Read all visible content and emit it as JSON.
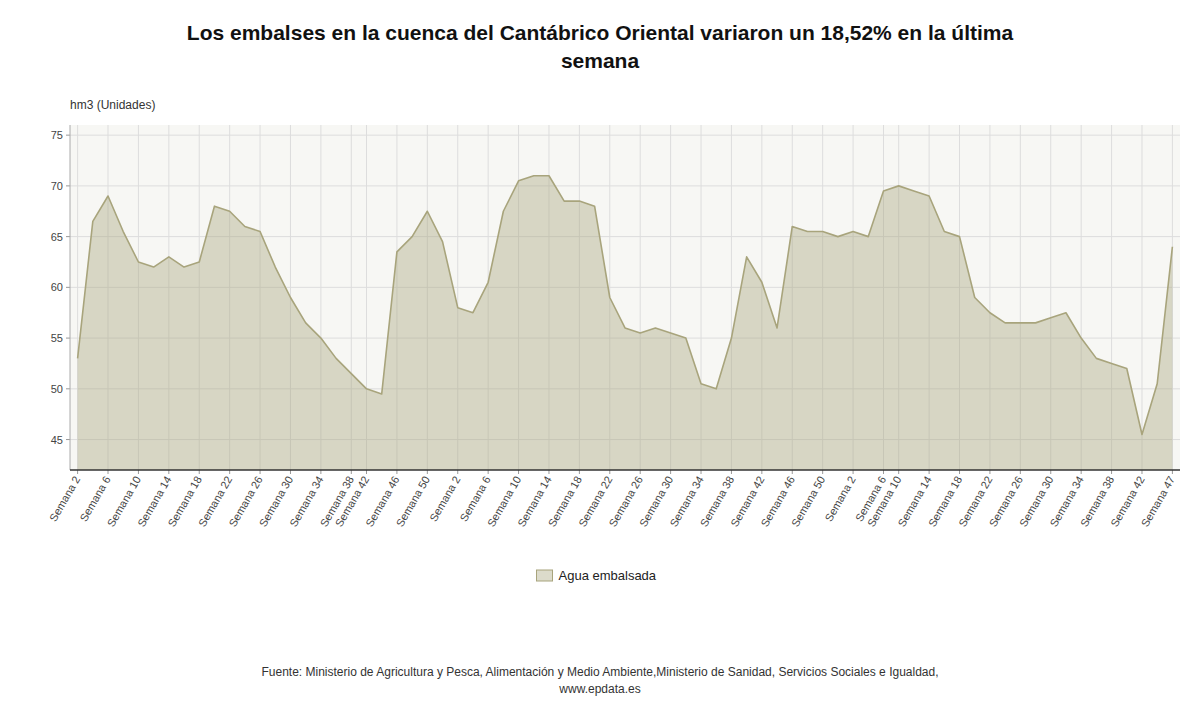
{
  "chart_data": {
    "type": "area",
    "title": "Los embalses en la cuenca del Cantábrico Oriental variaron un 18,52% en la última\nsemana",
    "y_label": "hm3 (Unidades)",
    "source": "Fuente: Ministerio de Agricultura y Pesca, Alimentación y Medio Ambiente,Ministerio de Sanidad, Servicios Sociales e Igualdad,\nwww.epdata.es",
    "categories": [
      "Semana 2",
      null,
      "Semana 6",
      null,
      "Semana 10",
      null,
      "Semana 14",
      null,
      "Semana 18",
      null,
      "Semana 22",
      null,
      "Semana 26",
      null,
      "Semana 30",
      null,
      "Semana 34",
      null,
      "Semana 38",
      "Semana 42",
      null,
      "Semana 46",
      null,
      "Semana 50",
      null,
      "Semana 2",
      null,
      "Semana 6",
      null,
      "Semana 10",
      null,
      "Semana 14",
      null,
      "Semana 18",
      null,
      "Semana 22",
      null,
      "Semana 26",
      null,
      "Semana 30",
      null,
      "Semana 34",
      null,
      "Semana 38",
      null,
      "Semana 42",
      null,
      "Semana 46",
      null,
      "Semana 50",
      null,
      "Semana 2",
      null,
      "Semana 6",
      "Semana 10",
      null,
      "Semana 14",
      null,
      "Semana 18",
      null,
      "Semana 22",
      null,
      "Semana 26",
      null,
      "Semana 30",
      null,
      "Semana 34",
      null,
      "Semana 38",
      null,
      "Semana 42",
      null,
      "Semana 47"
    ],
    "series": [
      {
        "name": "Agua embalsada",
        "color": "#a8a47c",
        "values": [
          53.0,
          66.5,
          69.0,
          65.5,
          62.5,
          62.0,
          63.0,
          62.0,
          62.5,
          68.0,
          67.5,
          66.0,
          65.5,
          62.0,
          59.0,
          56.5,
          55.0,
          53.0,
          51.5,
          50.0,
          49.5,
          63.5,
          65.0,
          67.5,
          64.5,
          58.0,
          57.5,
          60.5,
          67.5,
          70.5,
          71.0,
          71.0,
          68.5,
          68.5,
          68.0,
          59.0,
          56.0,
          55.5,
          56.0,
          55.5,
          55.0,
          50.5,
          50.0,
          55.0,
          63.0,
          60.5,
          56.0,
          66.0,
          65.5,
          65.5,
          65.0,
          65.5,
          65.0,
          69.5,
          70.0,
          69.5,
          69.0,
          65.5,
          65.0,
          59.0,
          57.5,
          56.5,
          56.5,
          56.5,
          57.0,
          57.5,
          55.0,
          53.0,
          52.5,
          52.0,
          45.5,
          50.5,
          64.0
        ]
      }
    ],
    "ylim": [
      42,
      76
    ],
    "yticks": [
      45,
      50,
      55,
      60,
      65,
      70,
      75
    ],
    "grid": true,
    "legend": "bottom"
  }
}
